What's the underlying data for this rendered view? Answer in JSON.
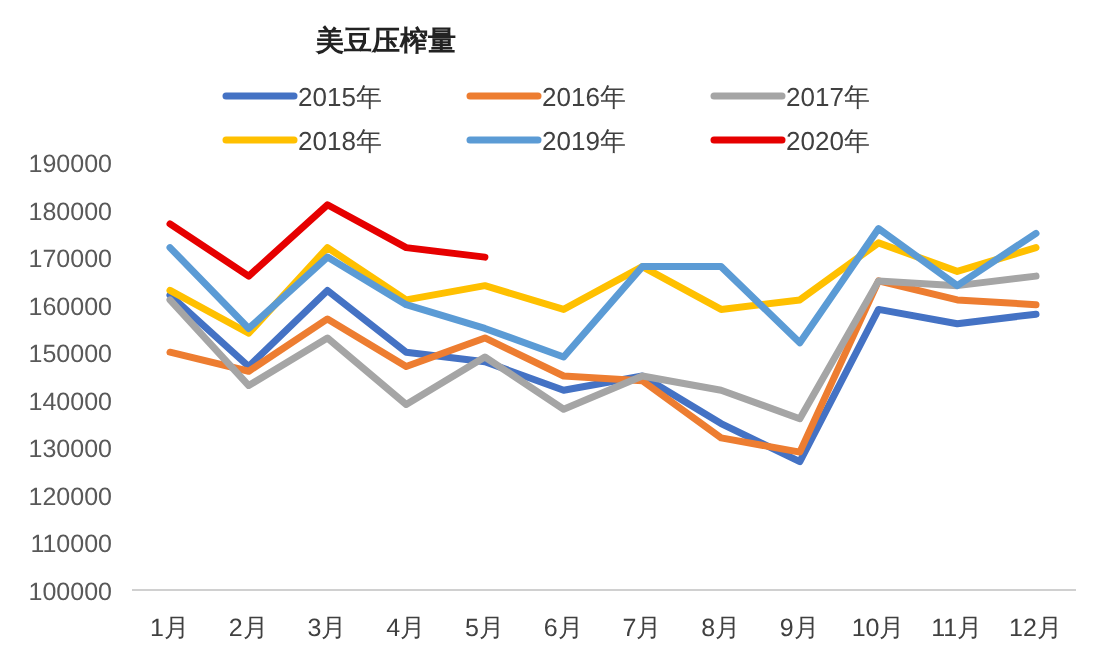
{
  "chart_data": {
    "type": "line",
    "title": "美豆压榨量",
    "categories": [
      "1月",
      "2月",
      "3月",
      "4月",
      "5月",
      "6月",
      "7月",
      "8月",
      "9月",
      "10月",
      "11月",
      "12月"
    ],
    "series": [
      {
        "name": "2015年",
        "color": "#4472c4",
        "values": [
          162000,
          147000,
          163000,
          150000,
          148000,
          142000,
          145000,
          135000,
          127000,
          159000,
          156000,
          158000
        ]
      },
      {
        "name": "2016年",
        "color": "#ed7d31",
        "values": [
          150000,
          146000,
          157000,
          147000,
          153000,
          145000,
          144000,
          132000,
          129000,
          165000,
          161000,
          160000
        ]
      },
      {
        "name": "2017年",
        "color": "#a5a5a5",
        "values": [
          161000,
          143000,
          153000,
          139000,
          149000,
          138000,
          145000,
          142000,
          136000,
          165000,
          164000,
          166000
        ]
      },
      {
        "name": "2018年",
        "color": "#ffc000",
        "values": [
          163000,
          154000,
          172000,
          161000,
          164000,
          159000,
          168000,
          159000,
          161000,
          173000,
          167000,
          172000
        ]
      },
      {
        "name": "2019年",
        "color": "#5b9bd5",
        "values": [
          172000,
          155000,
          170000,
          160000,
          155000,
          149000,
          168000,
          168000,
          152000,
          176000,
          164000,
          175000
        ]
      },
      {
        "name": "2020年",
        "color": "#e60000",
        "values": [
          177000,
          166000,
          181000,
          172000,
          170000,
          null,
          null,
          null,
          null,
          null,
          null,
          null
        ]
      }
    ],
    "ylim": [
      100000,
      190000
    ],
    "yticks": [
      100000,
      110000,
      120000,
      130000,
      140000,
      150000,
      160000,
      170000,
      180000,
      190000
    ],
    "grid": false,
    "legend": "top",
    "marker": "none",
    "line_style": "solid"
  }
}
